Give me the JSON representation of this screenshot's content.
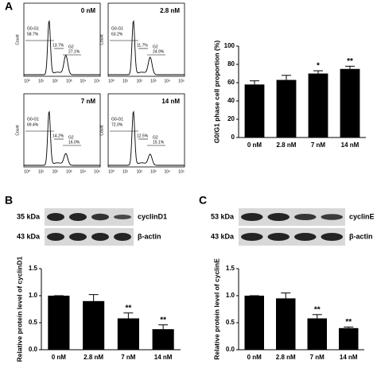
{
  "panel_labels": [
    "A",
    "B",
    "C"
  ],
  "flow_cytometry": {
    "ylabel": "Count",
    "xticks": [
      "10⁰",
      "10¹",
      "10²",
      "10³",
      "10⁴",
      "10⁵"
    ],
    "gate_g0g1": "G0-G1",
    "gate_g2": "G2",
    "panels": [
      {
        "label": "0 nM",
        "g0g1": "58.7%",
        "s": "13.7%",
        "g2": "27.1%"
      },
      {
        "label": "2.8 nM",
        "g0g1": "63.2%",
        "s": "11.7%",
        "g2": "24.9%"
      },
      {
        "label": "7 nM",
        "g0g1": "69.4%",
        "s": "14.2%",
        "g2": "16.0%"
      },
      {
        "label": "14 nM",
        "g0g1": "72.0%",
        "s": "12.5%",
        "g2": "15.1%"
      }
    ]
  },
  "blots": [
    {
      "bands": [
        {
          "size": "35 kDa",
          "name": "cyclinD1"
        },
        {
          "size": "43 kDa",
          "name": "β-actin"
        }
      ]
    },
    {
      "bands": [
        {
          "size": "53 kDa",
          "name": "cyclinE"
        },
        {
          "size": "43 kDa",
          "name": "β-actin"
        }
      ]
    }
  ],
  "chart_data": [
    {
      "type": "bar",
      "ylabel": "G0/G1 phase cell proportion (%)",
      "categories": [
        "0 nM",
        "2.8 nM",
        "7 nM",
        "14 nM"
      ],
      "values": [
        58,
        63,
        70,
        75
      ],
      "errors": [
        4,
        5,
        3,
        3
      ],
      "significance": [
        null,
        null,
        "*",
        "**"
      ],
      "color": "#000000",
      "ylim": [
        0,
        100
      ],
      "yticks": [
        0,
        20,
        40,
        60,
        80,
        100
      ]
    },
    {
      "type": "bar",
      "ylabel": "Relative protein level of cyclinD1",
      "categories": [
        "0 nM",
        "2.8 nM",
        "7 nM",
        "14 nM"
      ],
      "values": [
        1.0,
        0.9,
        0.58,
        0.38
      ],
      "errors": [
        0,
        0.12,
        0.1,
        0.08
      ],
      "significance": [
        null,
        null,
        "**",
        "**"
      ],
      "color": "#000000",
      "ylim": [
        0,
        1.5
      ],
      "yticks": [
        {
          "value": 0,
          "label": "0.0"
        },
        0.5,
        {
          "value": 1,
          "label": "1.0"
        },
        1.5
      ]
    },
    {
      "type": "bar",
      "ylabel": "Relative protein level of cyclinE",
      "categories": [
        "0 nM",
        "2.8 nM",
        "7 nM",
        "14 nM"
      ],
      "values": [
        1.0,
        0.95,
        0.58,
        0.4
      ],
      "errors": [
        0,
        0.1,
        0.07,
        0.02
      ],
      "significance": [
        null,
        null,
        "**",
        "**"
      ],
      "color": "#000000",
      "ylim": [
        0,
        1.5
      ],
      "yticks": [
        {
          "value": 0,
          "label": "0.0"
        },
        0.5,
        {
          "value": 1,
          "label": "1.0"
        },
        1.5
      ]
    }
  ]
}
